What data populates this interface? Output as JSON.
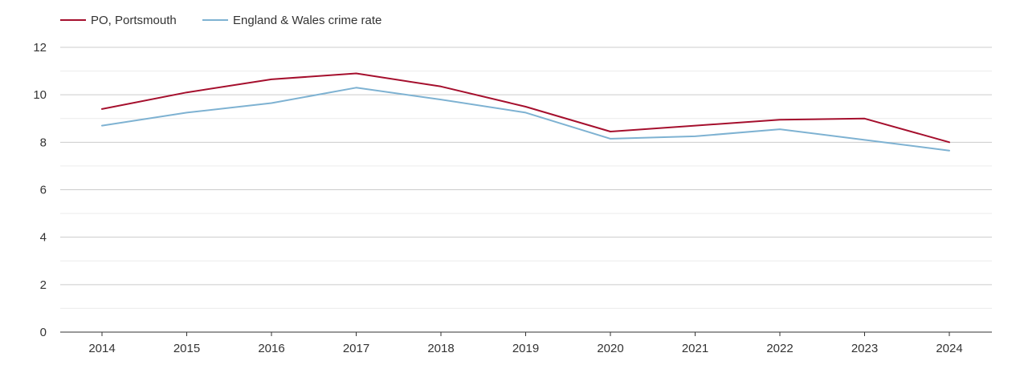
{
  "chart_data": {
    "type": "line",
    "title": "",
    "xlabel": "",
    "ylabel": "",
    "categories": [
      "2014",
      "2015",
      "2016",
      "2017",
      "2018",
      "2019",
      "2020",
      "2021",
      "2022",
      "2023",
      "2024"
    ],
    "ylim": [
      0,
      12
    ],
    "yticks": [
      0,
      2,
      4,
      6,
      8,
      10,
      12
    ],
    "grid": true,
    "legend_position": "top-left",
    "series": [
      {
        "name": "PO, Portsmouth",
        "color": "#a50f2d",
        "values": [
          9.4,
          10.1,
          10.65,
          10.9,
          10.35,
          9.5,
          8.45,
          8.7,
          8.95,
          9.0,
          8.0
        ]
      },
      {
        "name": "England & Wales crime rate",
        "color": "#7eb2d2",
        "values": [
          8.7,
          9.25,
          9.65,
          10.3,
          9.8,
          9.25,
          8.15,
          8.25,
          8.55,
          8.1,
          7.65
        ]
      }
    ]
  }
}
